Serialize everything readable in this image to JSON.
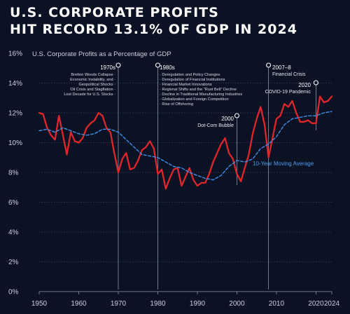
{
  "title_lines": [
    "U.S. CORPORATE PROFITS",
    "HIT RECORD 13.1% OF GDP IN 2024"
  ],
  "chart_data": {
    "type": "line",
    "ylabel": "U.S. Corporate Profits as a Percentage of GDP",
    "ylim": [
      0,
      16
    ],
    "yticks": [
      0,
      2,
      4,
      6,
      8,
      10,
      12,
      14,
      16
    ],
    "ytick_labels": [
      "0%",
      "2%",
      "4%",
      "6%",
      "8%",
      "10%",
      "12%",
      "14%",
      "16%"
    ],
    "xlim": [
      1950,
      2024
    ],
    "xticks": [
      1950,
      1960,
      1970,
      1980,
      1990,
      2000,
      2010,
      2020,
      2024
    ],
    "grid": "horizontal",
    "series": [
      {
        "name": "",
        "color": "#e0262a",
        "points": [
          [
            1950,
            12.0
          ],
          [
            1951,
            11.9
          ],
          [
            1952,
            11.0
          ],
          [
            1953,
            10.5
          ],
          [
            1954,
            10.2
          ],
          [
            1955,
            11.8
          ],
          [
            1956,
            10.5
          ],
          [
            1957,
            9.2
          ],
          [
            1958,
            10.7
          ],
          [
            1959,
            10.1
          ],
          [
            1960,
            10.0
          ],
          [
            1961,
            10.3
          ],
          [
            1962,
            11.0
          ],
          [
            1963,
            11.3
          ],
          [
            1964,
            11.5
          ],
          [
            1965,
            12.0
          ],
          [
            1966,
            11.8
          ],
          [
            1967,
            11.0
          ],
          [
            1968,
            10.7
          ],
          [
            1969,
            9.3
          ],
          [
            1970,
            8.0
          ],
          [
            1971,
            8.9
          ],
          [
            1972,
            9.3
          ],
          [
            1973,
            8.2
          ],
          [
            1974,
            8.3
          ],
          [
            1975,
            8.8
          ],
          [
            1976,
            9.5
          ],
          [
            1977,
            9.7
          ],
          [
            1978,
            10.1
          ],
          [
            1979,
            9.6
          ],
          [
            1980,
            7.9
          ],
          [
            1981,
            8.2
          ],
          [
            1982,
            6.9
          ],
          [
            1983,
            7.6
          ],
          [
            1984,
            8.2
          ],
          [
            1985,
            8.3
          ],
          [
            1986,
            7.1
          ],
          [
            1987,
            7.7
          ],
          [
            1988,
            8.3
          ],
          [
            1989,
            7.5
          ],
          [
            1990,
            7.1
          ],
          [
            1991,
            7.3
          ],
          [
            1992,
            7.3
          ],
          [
            1993,
            7.9
          ],
          [
            1994,
            8.7
          ],
          [
            1995,
            9.3
          ],
          [
            1996,
            9.9
          ],
          [
            1997,
            10.3
          ],
          [
            1998,
            9.3
          ],
          [
            1999,
            8.9
          ],
          [
            2000,
            7.9
          ],
          [
            2001,
            7.4
          ],
          [
            2002,
            8.3
          ],
          [
            2003,
            9.2
          ],
          [
            2004,
            10.6
          ],
          [
            2005,
            11.6
          ],
          [
            2006,
            12.4
          ],
          [
            2007,
            11.2
          ],
          [
            2008,
            9.0
          ],
          [
            2009,
            10.3
          ],
          [
            2010,
            11.6
          ],
          [
            2011,
            11.8
          ],
          [
            2012,
            12.6
          ],
          [
            2013,
            12.4
          ],
          [
            2014,
            12.8
          ],
          [
            2015,
            12.0
          ],
          [
            2016,
            11.4
          ],
          [
            2017,
            11.4
          ],
          [
            2018,
            11.5
          ],
          [
            2019,
            11.3
          ],
          [
            2020,
            11.3
          ],
          [
            2021,
            13.1
          ],
          [
            2022,
            12.7
          ],
          [
            2023,
            12.8
          ],
          [
            2024,
            13.1
          ]
        ]
      },
      {
        "name": "10-Year Moving Average",
        "color": "#3e8fe8",
        "dashed": true,
        "points": [
          [
            1950,
            10.8
          ],
          [
            1952,
            10.9
          ],
          [
            1954,
            10.7
          ],
          [
            1956,
            11.0
          ],
          [
            1958,
            10.8
          ],
          [
            1960,
            10.6
          ],
          [
            1962,
            10.5
          ],
          [
            1964,
            10.6
          ],
          [
            1966,
            10.9
          ],
          [
            1968,
            10.9
          ],
          [
            1970,
            10.7
          ],
          [
            1972,
            10.2
          ],
          [
            1974,
            9.7
          ],
          [
            1976,
            9.2
          ],
          [
            1978,
            9.1
          ],
          [
            1980,
            9.0
          ],
          [
            1982,
            8.7
          ],
          [
            1984,
            8.4
          ],
          [
            1986,
            8.3
          ],
          [
            1988,
            8.0
          ],
          [
            1990,
            7.8
          ],
          [
            1992,
            7.6
          ],
          [
            1994,
            7.5
          ],
          [
            1996,
            7.8
          ],
          [
            1998,
            8.4
          ],
          [
            2000,
            8.8
          ],
          [
            2002,
            8.7
          ],
          [
            2004,
            8.9
          ],
          [
            2006,
            9.6
          ],
          [
            2008,
            9.9
          ],
          [
            2010,
            10.4
          ],
          [
            2012,
            11.2
          ],
          [
            2014,
            11.6
          ],
          [
            2016,
            11.7
          ],
          [
            2018,
            11.8
          ],
          [
            2020,
            11.8
          ],
          [
            2022,
            12.0
          ],
          [
            2024,
            12.1
          ]
        ]
      }
    ],
    "annotations": [
      {
        "year": 1970,
        "label": "1970s",
        "items": [
          "Bretton Woods Collapse",
          "Economic Instability, and",
          "Geopolitical Shocks",
          "Oil Crisis and Stagflation",
          "Lost Decade for U.S. Stocks"
        ]
      },
      {
        "year": 1980,
        "label": "1980s",
        "items": [
          "Deregulation and Policy Changes",
          "Deregulation of Financial Institutions",
          "Financial Market Innovations",
          "Regional Shifts and the \"Rust Belt\" Decline",
          "Decline in Traditional Manufacturing Industries",
          "Globalization and Foreign Competition",
          "Rise of Offshoring"
        ]
      },
      {
        "year": 2000,
        "label": "2000",
        "sub": "Dot-Com Bubble"
      },
      {
        "year": 2008,
        "label": "2007–8",
        "sub": "Financial Crisis"
      },
      {
        "year": 2020,
        "label": "2020",
        "sub": "COVID-19 Pandemic"
      }
    ],
    "series_label": "10-Year Moving Average"
  }
}
